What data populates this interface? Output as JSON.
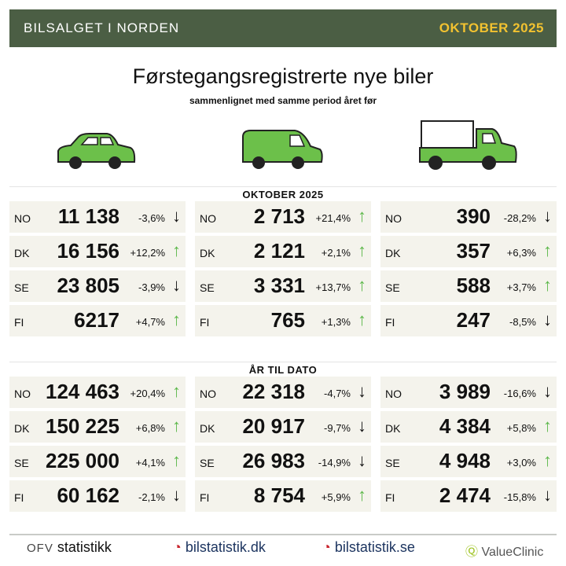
{
  "header": {
    "left": "BILSALGET I NORDEN",
    "right": "OKTOBER 2025"
  },
  "title": "Førstegangsregistrerte nye biler",
  "subtitle": "sammenlignet med samme period året før",
  "icons": [
    "car-icon",
    "van-icon",
    "truck-icon"
  ],
  "colors": {
    "header": "#4b5e44",
    "accent": "#f2c230",
    "vehicle": "#6cc04a",
    "up": "#5cb84a"
  },
  "sections": [
    {
      "label": "OKTOBER 2025",
      "columns": [
        [
          {
            "c": "NO",
            "v": "11 138",
            "p": "-3,6%",
            "d": "down"
          },
          {
            "c": "DK",
            "v": "16 156",
            "p": "+12,2%",
            "d": "up"
          },
          {
            "c": "SE",
            "v": "23 805",
            "p": "-3,9%",
            "d": "down"
          },
          {
            "c": "FI",
            "v": "6217",
            "p": "+4,7%",
            "d": "up"
          }
        ],
        [
          {
            "c": "NO",
            "v": "2 713",
            "p": "+21,4%",
            "d": "up"
          },
          {
            "c": "DK",
            "v": "2 121",
            "p": "+2,1%",
            "d": "up"
          },
          {
            "c": "SE",
            "v": "3 331",
            "p": "+13,7%",
            "d": "up"
          },
          {
            "c": "FI",
            "v": "765",
            "p": "+1,3%",
            "d": "up"
          }
        ],
        [
          {
            "c": "NO",
            "v": "390",
            "p": "-28,2%",
            "d": "down"
          },
          {
            "c": "DK",
            "v": "357",
            "p": "+6,3%",
            "d": "up"
          },
          {
            "c": "SE",
            "v": "588",
            "p": "+3,7%",
            "d": "up"
          },
          {
            "c": "FI",
            "v": "247",
            "p": "-8,5%",
            "d": "down"
          }
        ]
      ]
    },
    {
      "label": "ÅR TIL DATO",
      "columns": [
        [
          {
            "c": "NO",
            "v": "124 463",
            "p": "+20,4%",
            "d": "up"
          },
          {
            "c": "DK",
            "v": "150 225",
            "p": "+6,8%",
            "d": "up"
          },
          {
            "c": "SE",
            "v": "225 000",
            "p": "+4,1%",
            "d": "up"
          },
          {
            "c": "FI",
            "v": "60 162",
            "p": "-2,1%",
            "d": "down"
          }
        ],
        [
          {
            "c": "NO",
            "v": "22 318",
            "p": "-4,7%",
            "d": "down"
          },
          {
            "c": "DK",
            "v": "20 917",
            "p": "-9,7%",
            "d": "down"
          },
          {
            "c": "SE",
            "v": "26 983",
            "p": "-14,9%",
            "d": "down"
          },
          {
            "c": "FI",
            "v": "8 754",
            "p": "+5,9%",
            "d": "up"
          }
        ],
        [
          {
            "c": "NO",
            "v": "3 989",
            "p": "-16,6%",
            "d": "down"
          },
          {
            "c": "DK",
            "v": "4 384",
            "p": "+5,8%",
            "d": "up"
          },
          {
            "c": "SE",
            "v": "4 948",
            "p": "+3,0%",
            "d": "up"
          },
          {
            "c": "FI",
            "v": "2 474",
            "p": "-15,8%",
            "d": "down"
          }
        ]
      ]
    }
  ],
  "footer": {
    "logos": [
      "statistikk",
      "bilstatistik.dk",
      "bilstatistik.se",
      "ValueClinic"
    ],
    "ofv_mark": "OFV"
  }
}
